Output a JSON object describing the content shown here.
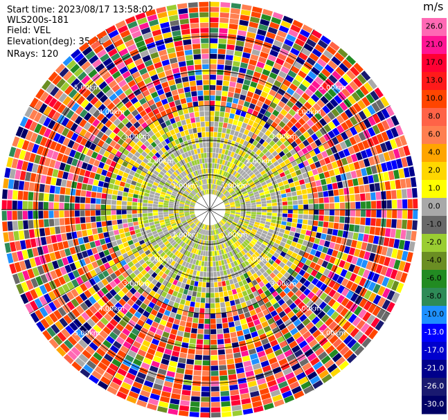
{
  "header": {
    "start_time": "Start time: 2023/08/17 13:58:02",
    "instrument": "WLS200s-181",
    "field": "Field: VEL",
    "elevation": "Elevation(deg): 35.30",
    "nrays": "NRays: 120"
  },
  "chart_data": {
    "type": "heatmap",
    "projection": "polar-ppi",
    "field": "VEL",
    "units": "m/s",
    "nrays": 120,
    "elevation_deg": 35.3,
    "range_ring_labels": [
      "1.00km",
      "2.00km",
      "3.00km",
      "4.00km",
      "5.00km"
    ],
    "range_rings_km": [
      1,
      2,
      3,
      4,
      5
    ],
    "max_range_km": 6.0,
    "colorbar": {
      "title": "m/s",
      "tick_labels": [
        "26.0",
        "21.0",
        "17.0",
        "13.0",
        "10.0",
        "8.0",
        "6.0",
        "4.0",
        "2.0",
        "1.0",
        "0.0",
        "-1.0",
        "-2.0",
        "-4.0",
        "-6.0",
        "-8.0",
        "-10.0",
        "-13.0",
        "-17.0",
        "-21.0",
        "-26.0",
        "-30.0"
      ],
      "colors": [
        "#ff69b4",
        "#ff1493",
        "#ff0033",
        "#ff1a1a",
        "#ff4500",
        "#ff6347",
        "#ff7f50",
        "#ffa500",
        "#ffd700",
        "#ffff00",
        "#a9a9a9",
        "#696969",
        "#9acd32",
        "#6b8e23",
        "#228b22",
        "#2e8b57",
        "#1e90ff",
        "#0000ff",
        "#0000cd",
        "#00008b",
        "#191970",
        "#000066"
      ]
    }
  }
}
